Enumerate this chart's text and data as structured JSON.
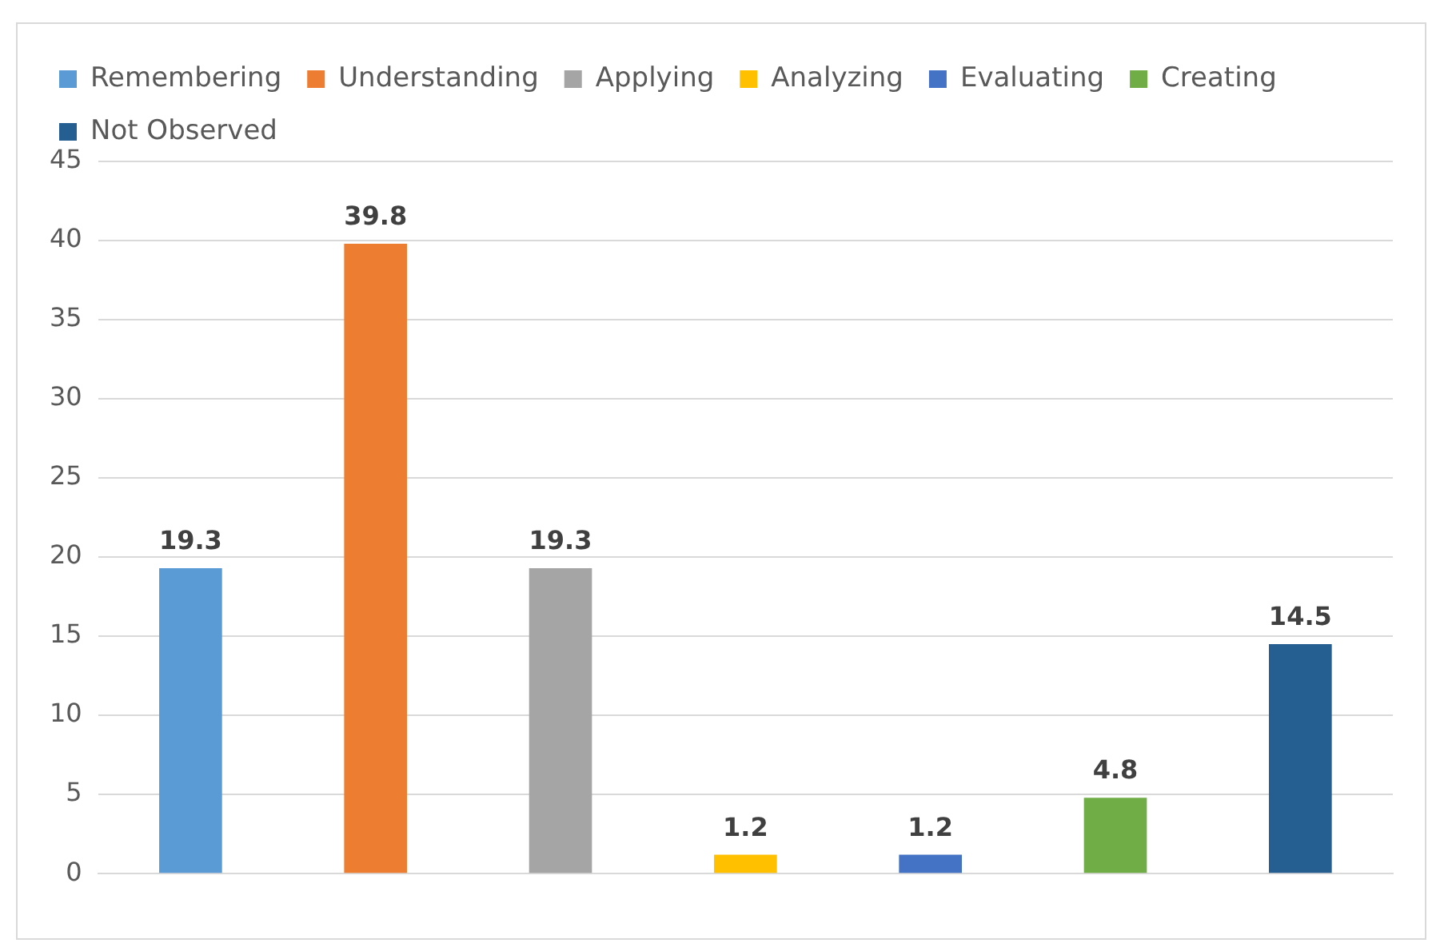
{
  "chart_data": {
    "type": "bar",
    "categories": [
      null,
      null,
      null,
      null,
      null,
      null,
      null
    ],
    "series": [
      {
        "name": "Remembering",
        "color": "#5b9bd5",
        "values": [
          19.3,
          null,
          null,
          null,
          null,
          null,
          null
        ]
      },
      {
        "name": "Understanding",
        "color": "#ed7d31",
        "values": [
          null,
          39.8,
          null,
          null,
          null,
          null,
          null
        ]
      },
      {
        "name": "Applying",
        "color": "#a5a5a5",
        "values": [
          null,
          null,
          19.3,
          null,
          null,
          null,
          null
        ]
      },
      {
        "name": "Analyzing",
        "color": "#ffc000",
        "values": [
          null,
          null,
          null,
          1.2,
          null,
          null,
          null
        ]
      },
      {
        "name": "Evaluating",
        "color": "#4472c4",
        "values": [
          null,
          null,
          null,
          null,
          1.2,
          null,
          null
        ]
      },
      {
        "name": "Creating",
        "color": "#70ad47",
        "values": [
          null,
          null,
          null,
          null,
          null,
          4.8,
          null
        ]
      },
      {
        "name": "Not Observed",
        "color": "#255e91",
        "values": [
          null,
          null,
          null,
          null,
          null,
          null,
          14.5
        ]
      }
    ],
    "ylim": [
      0,
      45
    ],
    "yticks": [
      0,
      5,
      10,
      15,
      20,
      25,
      30,
      35,
      40,
      45
    ],
    "grid": "y",
    "legend": "top",
    "data_labels": true
  }
}
